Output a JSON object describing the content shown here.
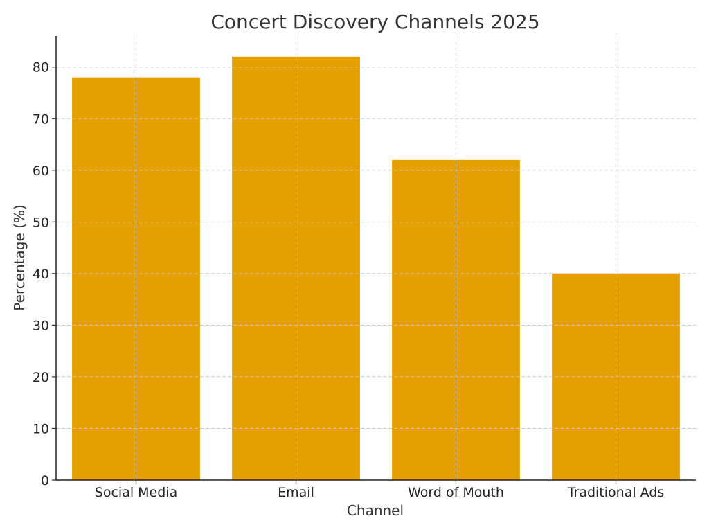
{
  "chart_data": {
    "type": "bar",
    "title": "Concert Discovery Channels 2025",
    "xlabel": "Channel",
    "ylabel": "Percentage (%)",
    "categories": [
      "Social Media",
      "Email",
      "Word of Mouth",
      "Traditional Ads"
    ],
    "values": [
      78,
      82,
      62,
      40
    ],
    "ylim": [
      0,
      86
    ],
    "yticks": [
      0,
      10,
      20,
      30,
      40,
      50,
      60,
      70,
      80
    ],
    "grid": true,
    "legend": "none",
    "bar_color": "#E69F00"
  }
}
